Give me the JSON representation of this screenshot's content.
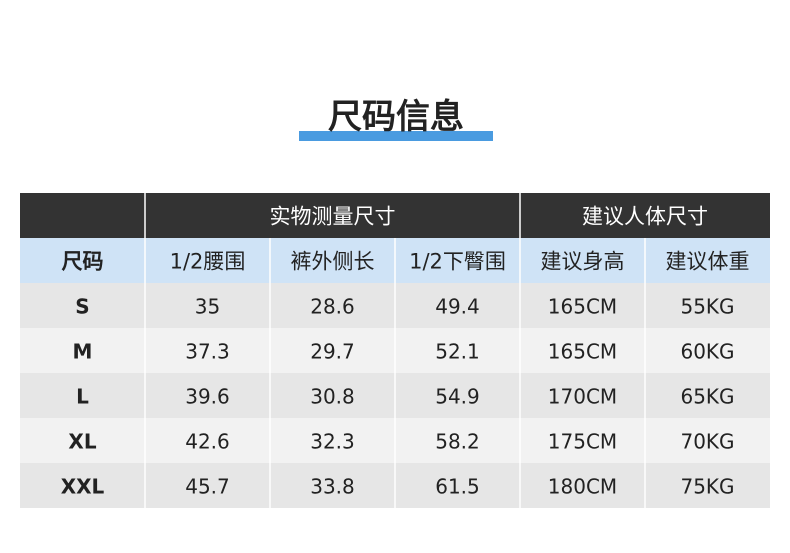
{
  "title": "尺码信息",
  "table": {
    "group_headers": [
      "实物测量尺寸",
      "建议人体尺寸"
    ],
    "columns": [
      "尺码",
      "1/2腰围",
      "裤外侧长",
      "1/2下臀围",
      "建议身高",
      "建议体重"
    ],
    "rows": [
      [
        "S",
        "35",
        "28.6",
        "49.4",
        "165CM",
        "55KG"
      ],
      [
        "M",
        "37.3",
        "29.7",
        "52.1",
        "165CM",
        "60KG"
      ],
      [
        "L",
        "39.6",
        "30.8",
        "54.9",
        "170CM",
        "65KG"
      ],
      [
        "XL",
        "42.6",
        "32.3",
        "58.2",
        "175CM",
        "70KG"
      ],
      [
        "XXL",
        "45.7",
        "33.8",
        "61.5",
        "180CM",
        "75KG"
      ]
    ]
  }
}
